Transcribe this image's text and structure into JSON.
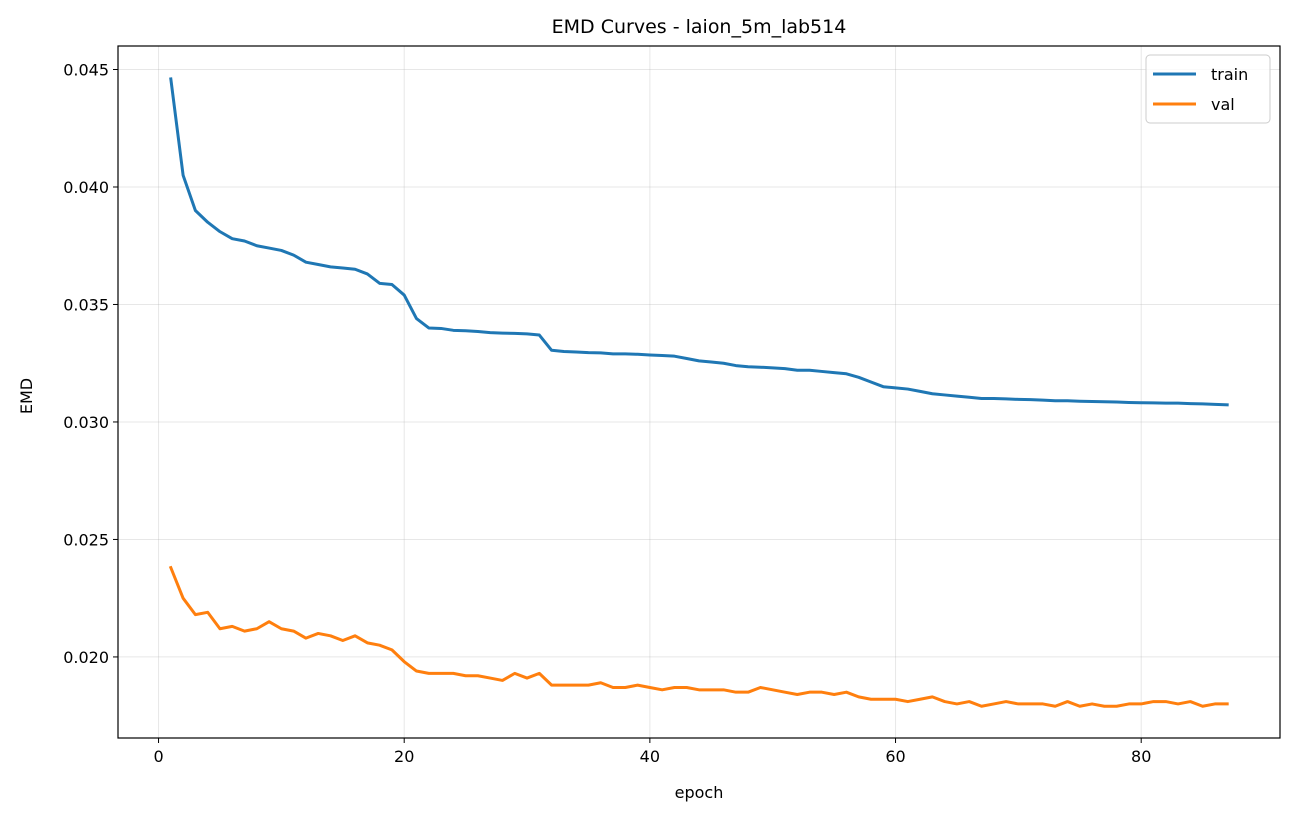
{
  "chart_data": {
    "type": "line",
    "title": "EMD Curves - laion_5m_lab514",
    "xlabel": "epoch",
    "ylabel": "EMD",
    "xlim": [
      -3.3,
      91.3
    ],
    "ylim": [
      0.01655,
      0.046
    ],
    "xticks": [
      0,
      20,
      40,
      60,
      80
    ],
    "yticks": [
      0.02,
      0.025,
      0.03,
      0.035,
      0.04,
      0.045
    ],
    "ytick_labels": [
      "0.020",
      "0.025",
      "0.030",
      "0.035",
      "0.040",
      "0.045"
    ],
    "grid": true,
    "legend_position": "top-right",
    "x": [
      1,
      2,
      3,
      4,
      5,
      6,
      7,
      8,
      9,
      10,
      11,
      12,
      13,
      14,
      15,
      16,
      17,
      18,
      19,
      20,
      21,
      22,
      23,
      24,
      25,
      26,
      27,
      28,
      29,
      30,
      31,
      32,
      33,
      34,
      35,
      36,
      37,
      38,
      39,
      40,
      41,
      42,
      43,
      44,
      45,
      46,
      47,
      48,
      49,
      50,
      51,
      52,
      53,
      54,
      55,
      56,
      57,
      58,
      59,
      60,
      61,
      62,
      63,
      64,
      65,
      66,
      67,
      68,
      69,
      70,
      71,
      72,
      73,
      74,
      75,
      76,
      77,
      78,
      79,
      80,
      81,
      82,
      83,
      84,
      85,
      86,
      87
    ],
    "series": [
      {
        "name": "train",
        "color": "#1f77b4",
        "values": [
          0.0446,
          0.0405,
          0.039,
          0.0385,
          0.0381,
          0.0378,
          0.0377,
          0.0375,
          0.0374,
          0.0373,
          0.0371,
          0.0368,
          0.0367,
          0.0366,
          0.03655,
          0.0365,
          0.0363,
          0.0359,
          0.03585,
          0.0354,
          0.0344,
          0.034,
          0.03398,
          0.0339,
          0.03388,
          0.03385,
          0.0338,
          0.03378,
          0.03377,
          0.03375,
          0.0337,
          0.03305,
          0.033,
          0.03298,
          0.03295,
          0.03294,
          0.0329,
          0.0329,
          0.03288,
          0.03285,
          0.03283,
          0.0328,
          0.0327,
          0.0326,
          0.03255,
          0.0325,
          0.0324,
          0.03235,
          0.03233,
          0.0323,
          0.03227,
          0.0322,
          0.0322,
          0.03215,
          0.0321,
          0.03205,
          0.0319,
          0.0317,
          0.0315,
          0.03145,
          0.0314,
          0.0313,
          0.0312,
          0.03115,
          0.0311,
          0.03105,
          0.031,
          0.031,
          0.03098,
          0.03096,
          0.03095,
          0.03093,
          0.0309,
          0.0309,
          0.03088,
          0.03087,
          0.03086,
          0.03085,
          0.03083,
          0.03082,
          0.03081,
          0.0308,
          0.0308,
          0.03078,
          0.03077,
          0.03075,
          0.03073
        ]
      },
      {
        "name": "val",
        "color": "#ff7f0e",
        "values": [
          0.0238,
          0.0225,
          0.0218,
          0.0219,
          0.0212,
          0.0213,
          0.0211,
          0.0212,
          0.0215,
          0.0212,
          0.0211,
          0.0208,
          0.021,
          0.0209,
          0.0207,
          0.0209,
          0.0206,
          0.0205,
          0.0203,
          0.0198,
          0.0194,
          0.0193,
          0.0193,
          0.0193,
          0.0192,
          0.0192,
          0.0191,
          0.019,
          0.0193,
          0.0191,
          0.0193,
          0.0188,
          0.0188,
          0.0188,
          0.0188,
          0.0189,
          0.0187,
          0.0187,
          0.0188,
          0.0187,
          0.0186,
          0.0187,
          0.0187,
          0.0186,
          0.0186,
          0.0186,
          0.0185,
          0.0185,
          0.0187,
          0.0186,
          0.0185,
          0.0184,
          0.0185,
          0.0185,
          0.0184,
          0.0185,
          0.0183,
          0.0182,
          0.0182,
          0.0182,
          0.0181,
          0.0182,
          0.0183,
          0.0181,
          0.018,
          0.0181,
          0.0179,
          0.018,
          0.0181,
          0.018,
          0.018,
          0.018,
          0.0179,
          0.0181,
          0.0179,
          0.018,
          0.0179,
          0.0179,
          0.018,
          0.018,
          0.0181,
          0.0181,
          0.018,
          0.0181,
          0.0179,
          0.018,
          0.018
        ]
      }
    ]
  }
}
